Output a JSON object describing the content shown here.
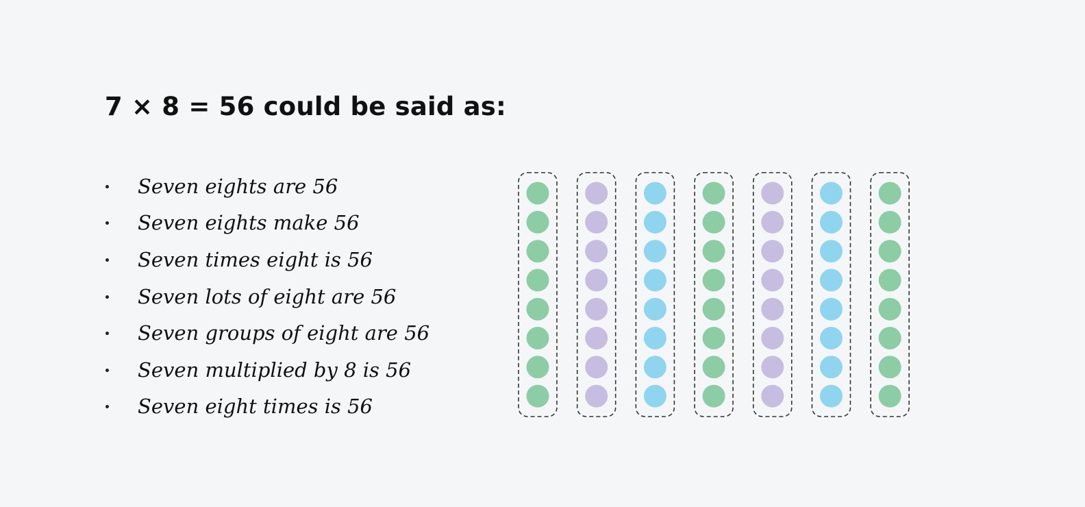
{
  "heading": "7 × 8 = 56 could be said as:",
  "phrases": [
    "Seven eights are 56",
    "Seven eights make 56",
    "Seven times eight is 56",
    "Seven lots of eight are 56",
    "Seven groups of eight are 56",
    "Seven multiplied by 8 is 56",
    "Seven eight times is 56"
  ],
  "groups": {
    "count": 7,
    "counters_per_group": 8,
    "colors": [
      "#8ccda6",
      "#c6bde0",
      "#8fd5ef",
      "#8ccda6",
      "#c6bde0",
      "#8fd5ef",
      "#8ccda6"
    ],
    "border_color": "#333333"
  }
}
